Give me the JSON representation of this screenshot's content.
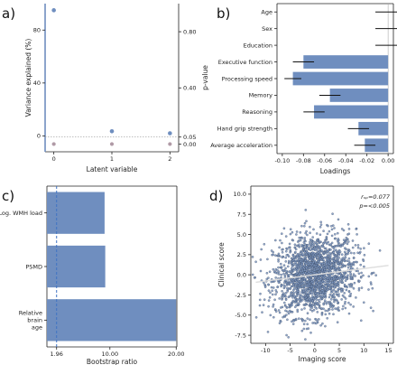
{
  "panels": {
    "a": "a)",
    "b": "b)",
    "c": "c)",
    "d": "d)"
  },
  "colors": {
    "bar": "#6f8ebf",
    "point": "#6f8ebf",
    "grey_point": "#b09aa6",
    "ref_line": "#8aa6cf",
    "err": "#111111",
    "scatter_edge": "#2d3a52"
  },
  "chart_data": [
    {
      "id": "a",
      "type": "scatter",
      "xlabel": "Latent variable",
      "ylabel": "Variance explained (%)",
      "y2label": "p-value",
      "x": [
        0,
        1,
        2
      ],
      "xticks": [
        "0",
        "1",
        "2"
      ],
      "yticks": [
        "0",
        "40",
        "80"
      ],
      "y2ticks": [
        "0.00",
        "0.05",
        "0.40",
        "0.80"
      ],
      "ylim": [
        -12,
        100
      ],
      "y2lim": [
        -0.055,
        1.0
      ],
      "series": [
        {
          "values": [
            95,
            3.5,
            2
          ]
        },
        {
          "values": [
            0.0,
            0.0,
            0.0
          ]
        }
      ],
      "threshold": 0.05
    },
    {
      "id": "b",
      "type": "bar",
      "orientation": "horizontal",
      "xlabel": "Loadings",
      "categories": [
        "Age",
        "Sex",
        "Education",
        "Executive function",
        "Processing speed",
        "Memory",
        "Reasoning",
        "Hand grip strength",
        "Average acceleration"
      ],
      "values": [
        0,
        0,
        0,
        -0.08,
        -0.09,
        -0.055,
        -0.07,
        -0.028,
        -0.022
      ],
      "error": [
        0.012,
        0.012,
        0.012,
        0.01,
        0.008,
        0.01,
        0.01,
        0.01,
        0.01
      ],
      "xticks": [
        "-0.10",
        "-0.08",
        "-0.06",
        "-0.04",
        "-0.02",
        "0.00"
      ],
      "xlim": [
        -0.105,
        0.005
      ]
    },
    {
      "id": "c",
      "type": "bar",
      "orientation": "horizontal",
      "xlabel": "Bootstrap ratio",
      "categories": [
        "Log. WMH load",
        "PSMD",
        "Relative brain age"
      ],
      "category_lines": [
        [
          "Log. WMH load"
        ],
        [
          "PSMD"
        ],
        [
          "Relative",
          "brain",
          "age"
        ]
      ],
      "values": [
        9.2,
        9.3,
        20.0
      ],
      "xticks": [
        "1.96",
        "10.00",
        "20.00"
      ],
      "xlim": [
        0.5,
        20.1
      ],
      "threshold": 1.96
    },
    {
      "id": "d",
      "type": "scatter",
      "xlabel": "Imaging score",
      "ylabel": "Clinical score",
      "xticks": [
        "-10",
        "-5",
        "0",
        "5",
        "10",
        "15"
      ],
      "yticks": [
        "-7.5",
        "-5.0",
        "-2.5",
        "0.0",
        "2.5",
        "5.0",
        "7.5",
        "10.0"
      ],
      "xlim": [
        -13,
        16
      ],
      "ylim": [
        -8.5,
        11
      ],
      "annotation_r": "rₛₚ=0.077",
      "annotation_p": "p=<0.005",
      "fit": {
        "slope": 0.077,
        "intercept": 0.0
      }
    }
  ]
}
